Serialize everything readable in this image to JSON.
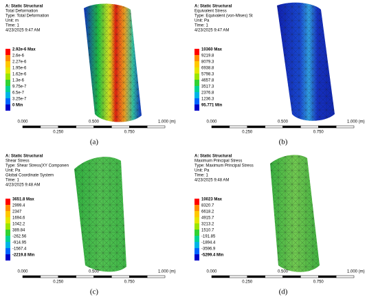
{
  "panels": [
    {
      "header": [
        "A: Static Structural",
        "Total Deformation",
        "Type: Total Deformation",
        "Unit: m",
        "Time: 1",
        "4/23/2025 9:47 AM"
      ],
      "legend": [
        "2.92e-6 Max",
        "2.6e-6",
        "2.27e-6",
        "1.95e-6",
        "1.62e-6",
        "1.3e-6",
        "9.75e-7",
        "6.5e-7",
        "3.25e-7",
        "0 Min"
      ],
      "scale_top": [
        "0.000",
        "0.500",
        "1.000 (m)"
      ],
      "scale_bottom": [
        "0.250",
        "0.750"
      ],
      "caption": "(a)"
    },
    {
      "header": [
        "A: Static Structural",
        "Equivalent Stress",
        "Type: Equivalent (von-Mises) St",
        "Unit: Pa",
        "Time: 1",
        "4/23/2025 9:47 AM"
      ],
      "legend": [
        "10360 Max",
        "9219.8",
        "8079.3",
        "6938.8",
        "5798.3",
        "4657.8",
        "3517.3",
        "2376.8",
        "1236.3",
        "95.771 Min"
      ],
      "scale_top": [
        "0.000",
        "0.500",
        "1.000 (m)"
      ],
      "scale_bottom": [
        "0.250",
        "0.750"
      ],
      "caption": "(b)"
    },
    {
      "header": [
        "A: Static Structural",
        "Shear Stress",
        "Type: Shear Stress(XY Componen",
        "Unit: Pa",
        "Global Coordinate System",
        "Time: 1",
        "4/23/2025 9:48 AM"
      ],
      "legend": [
        "3651.8 Max",
        "2999.4",
        "2347",
        "1694.6",
        "1042.2",
        "389.84",
        "-262.56",
        "-914.95",
        "-1567.4",
        "-2219.8 Min"
      ],
      "scale_top": [
        "0.000",
        "0.500",
        "1.000 (m)"
      ],
      "scale_bottom": [
        "0.250",
        "0.750"
      ],
      "caption": "(c)"
    },
    {
      "header": [
        "A: Static Structural",
        "Maximum Principal Stress",
        "Type: Maximum Principal Stress",
        "Unit: Pa",
        "Time: 1",
        "4/23/2025 9:48 AM"
      ],
      "legend": [
        "10023 Max",
        "8320.7",
        "6618.2",
        "4915.7",
        "3213.2",
        "1510.7",
        "-191.85",
        "-1894.4",
        "-3596.9",
        "-5299.4 Min"
      ],
      "scale_top": [
        "0.000",
        "0.500",
        "1.000 (m)"
      ],
      "scale_bottom": [
        "0.250",
        "0.750"
      ],
      "caption": "(d)"
    }
  ]
}
